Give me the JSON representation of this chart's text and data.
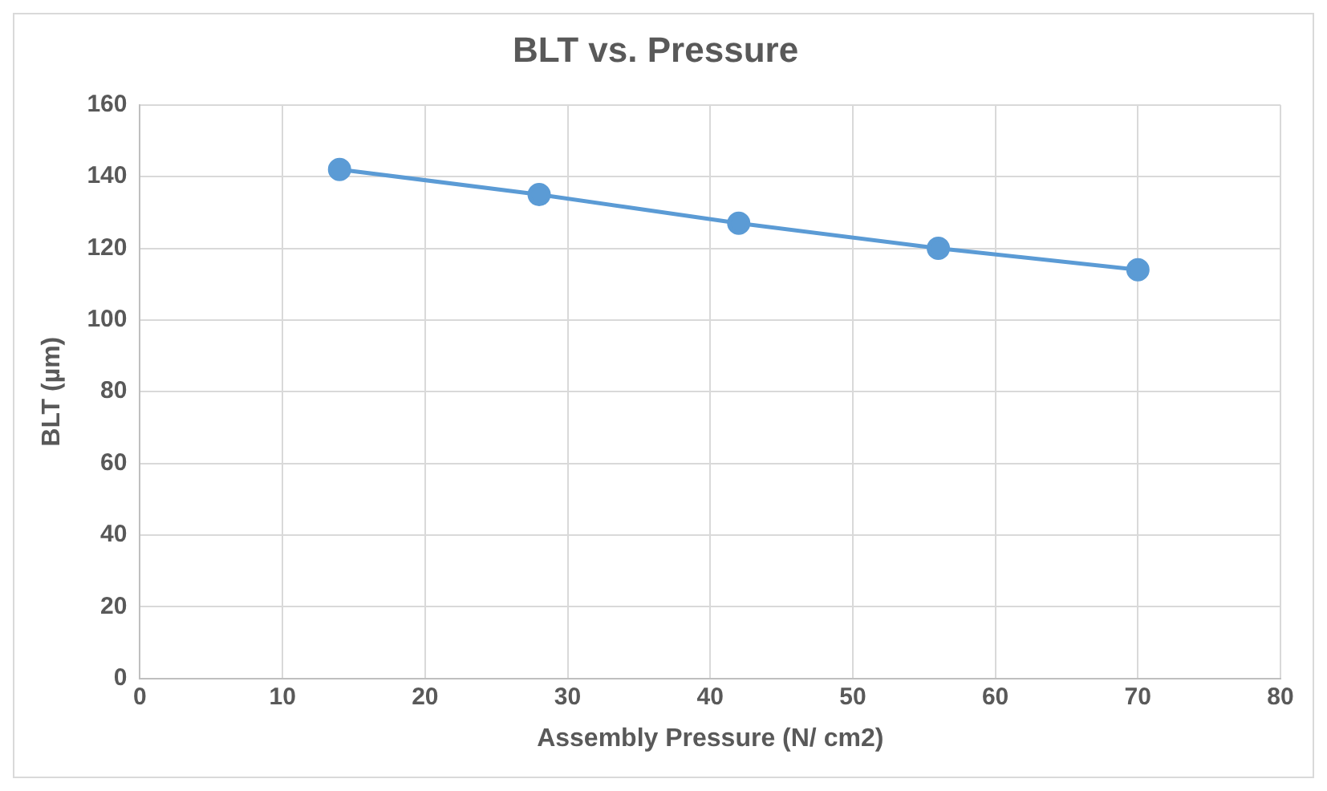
{
  "chart_data": {
    "type": "line",
    "title": "BLT vs. Pressure",
    "xlabel": "Assembly Pressure (N/ cm2)",
    "ylabel": "BLT (µm)",
    "x": [
      14,
      28,
      42,
      56,
      70
    ],
    "series": [
      {
        "color": "#5b9bd5",
        "values": [
          142,
          135,
          127,
          120,
          114
        ]
      }
    ],
    "xlim": [
      0,
      80
    ],
    "xticks": [
      0,
      10,
      20,
      30,
      40,
      50,
      60,
      70,
      80
    ],
    "ylim": [
      0,
      160
    ],
    "yticks": [
      0,
      20,
      40,
      60,
      80,
      100,
      120,
      140,
      160
    ],
    "grid": true,
    "legend": false,
    "marker": "circle",
    "line_style": "solid"
  }
}
